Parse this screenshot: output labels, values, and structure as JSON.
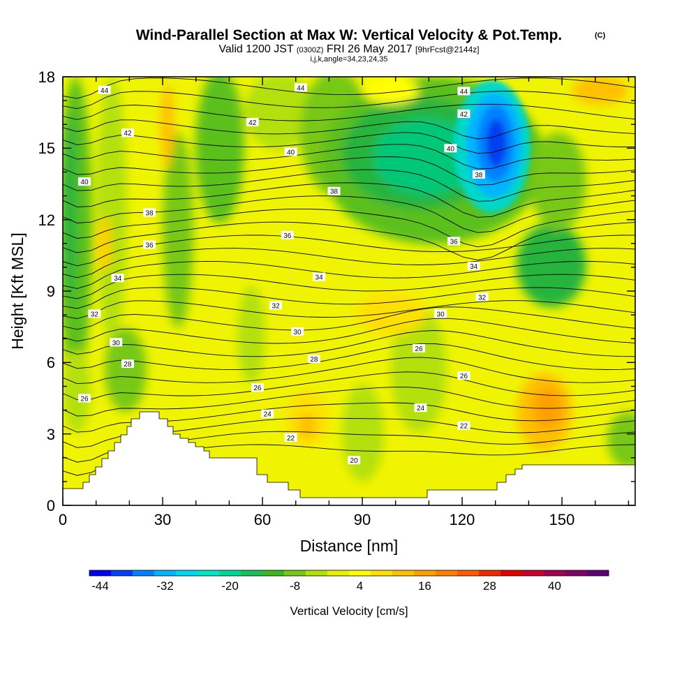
{
  "header": {
    "title": "Wind-Parallel Section at Max W: Vertical Velocity & Pot.Temp.",
    "copyright": "(C)",
    "valid_prefix": "Valid 1200 JST",
    "valid_zulu": "(0300Z)",
    "valid_date": "FRI 26 May 2017",
    "forecast": "[9hrFcst@2144z]",
    "indices": "i,j,k,angle=34,23,24,35"
  },
  "chart_data": {
    "type": "heatmap",
    "title": "Wind-Parallel Section at Max W: Vertical Velocity & Pot.Temp.",
    "xlabel": "Distance [nm]",
    "ylabel": "Height [Kft MSL]",
    "xlim": [
      0,
      172
    ],
    "ylim": [
      0,
      18
    ],
    "x_ticks": [
      "0",
      "30",
      "60",
      "90",
      "120",
      "150"
    ],
    "y_ticks": [
      "0",
      "3",
      "6",
      "9",
      "12",
      "15",
      "18"
    ],
    "colorbar": {
      "label": "Vertical Velocity [cm/s]",
      "tick_labels": [
        "-44",
        "-32",
        "-20",
        "-8",
        "4",
        "16",
        "28",
        "40"
      ],
      "colors": [
        "#0000f0",
        "#0040f8",
        "#0080ff",
        "#00b4ff",
        "#00d8f0",
        "#00e6c8",
        "#00d896",
        "#18c058",
        "#3cb81e",
        "#78c814",
        "#b4e00a",
        "#e6f000",
        "#ffff00",
        "#ffe000",
        "#ffc000",
        "#ffa000",
        "#ff8000",
        "#ff5a00",
        "#f02800",
        "#e00000",
        "#c80028",
        "#a00050",
        "#800064",
        "#600078"
      ]
    },
    "contour_labels": [
      {
        "text": "44",
        "x": 12.5,
        "y": 17.45
      },
      {
        "text": "44",
        "x": 71.5,
        "y": 17.55
      },
      {
        "text": "44",
        "x": 120.5,
        "y": 17.4
      },
      {
        "text": "42",
        "x": 19.5,
        "y": 15.65
      },
      {
        "text": "42",
        "x": 57,
        "y": 16.1
      },
      {
        "text": "42",
        "x": 120.5,
        "y": 16.45
      },
      {
        "text": "40",
        "x": 6.5,
        "y": 13.6
      },
      {
        "text": "40",
        "x": 68.5,
        "y": 14.85
      },
      {
        "text": "40",
        "x": 116.5,
        "y": 15
      },
      {
        "text": "38",
        "x": 26,
        "y": 12.3
      },
      {
        "text": "38",
        "x": 81.5,
        "y": 13.2
      },
      {
        "text": "38",
        "x": 125,
        "y": 13.9
      },
      {
        "text": "36",
        "x": 26,
        "y": 10.95
      },
      {
        "text": "36",
        "x": 67.5,
        "y": 11.35
      },
      {
        "text": "36",
        "x": 117.5,
        "y": 11.1
      },
      {
        "text": "34",
        "x": 16.5,
        "y": 9.55
      },
      {
        "text": "34",
        "x": 77,
        "y": 9.6
      },
      {
        "text": "34",
        "x": 123.5,
        "y": 10.05
      },
      {
        "text": "32",
        "x": 9.5,
        "y": 8.05
      },
      {
        "text": "32",
        "x": 64,
        "y": 8.4
      },
      {
        "text": "32",
        "x": 126,
        "y": 8.75
      },
      {
        "text": "30",
        "x": 16,
        "y": 6.85
      },
      {
        "text": "30",
        "x": 70.5,
        "y": 7.3
      },
      {
        "text": "30",
        "x": 113.5,
        "y": 8.05
      },
      {
        "text": "28",
        "x": 19.5,
        "y": 5.95
      },
      {
        "text": "28",
        "x": 75.5,
        "y": 6.15
      },
      {
        "text": "26",
        "x": 6.5,
        "y": 4.5
      },
      {
        "text": "26",
        "x": 58.5,
        "y": 4.95
      },
      {
        "text": "26",
        "x": 107,
        "y": 6.6
      },
      {
        "text": "26",
        "x": 120.5,
        "y": 5.45
      },
      {
        "text": "24",
        "x": 61.5,
        "y": 3.85
      },
      {
        "text": "24",
        "x": 107.5,
        "y": 4.1
      },
      {
        "text": "22",
        "x": 68.5,
        "y": 2.85
      },
      {
        "text": "22",
        "x": 120.5,
        "y": 3.35
      },
      {
        "text": "20",
        "x": 87.5,
        "y": 1.9
      }
    ]
  }
}
